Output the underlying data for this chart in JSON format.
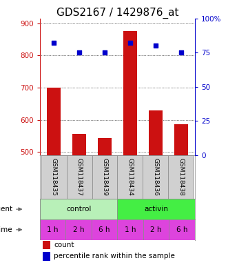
{
  "title": "GDS2167 / 1429876_at",
  "samples": [
    "GSM118435",
    "GSM118437",
    "GSM118439",
    "GSM118434",
    "GSM118436",
    "GSM118438"
  ],
  "counts": [
    700,
    555,
    543,
    875,
    628,
    585
  ],
  "percentiles": [
    82,
    75,
    75,
    82,
    80,
    75
  ],
  "ylim_left": [
    490,
    915
  ],
  "ylim_right": [
    0,
    100
  ],
  "yticks_left": [
    500,
    600,
    700,
    800,
    900
  ],
  "yticks_right": [
    0,
    25,
    50,
    75,
    100
  ],
  "bar_color": "#cc1111",
  "dot_color": "#0000cc",
  "agent_labels": [
    "control",
    "activin"
  ],
  "agent_colors": [
    "#b8f0b8",
    "#44ee44"
  ],
  "time_labels": [
    "1 h",
    "2 h",
    "6 h",
    "1 h",
    "2 h",
    "6 h"
  ],
  "time_color": "#dd44dd",
  "label_row1": "agent",
  "label_row2": "time",
  "legend_count_label": "count",
  "legend_pct_label": "percentile rank within the sample",
  "title_fontsize": 11,
  "tick_fontsize": 7.5,
  "sample_fontsize": 6.5
}
